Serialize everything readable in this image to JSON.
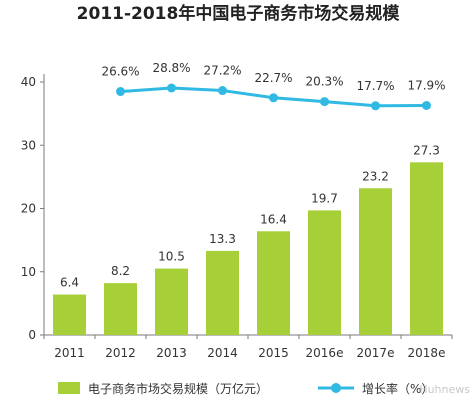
{
  "chart_data": {
    "type": "bar",
    "title": "2011-2018年中国电子商务市场交易规模",
    "categories": [
      "2011",
      "2012",
      "2013",
      "2014",
      "2015",
      "2016e",
      "2017e",
      "2018e"
    ],
    "series": [
      {
        "name": "电子商务市场交易规模（万亿元）",
        "kind": "bar",
        "color": "#a6cf38",
        "values": [
          6.4,
          8.2,
          10.5,
          13.3,
          16.4,
          19.7,
          23.2,
          27.3
        ],
        "labels": [
          "6.4",
          "8.2",
          "10.5",
          "13.3",
          "16.4",
          "19.7",
          "23.2",
          "27.3"
        ]
      },
      {
        "name": "增长率（%）",
        "kind": "line",
        "color": "#2fb9e3",
        "values": [
          null,
          26.6,
          28.8,
          27.2,
          22.7,
          20.3,
          17.7,
          17.9
        ],
        "labels": [
          null,
          "26.6%",
          "28.8%",
          "27.2%",
          "22.7%",
          "20.3%",
          "17.7%",
          "17.9%"
        ]
      }
    ],
    "ylim": [
      0,
      40
    ],
    "yticks": [
      "0",
      "10",
      "20",
      "30",
      "40"
    ],
    "grid": false,
    "legend_position": "bottom",
    "legend": {
      "bar_label": "电子商务市场交易规模（万亿元）",
      "line_label": "增长率（%）"
    }
  },
  "watermark": "Huhnews"
}
